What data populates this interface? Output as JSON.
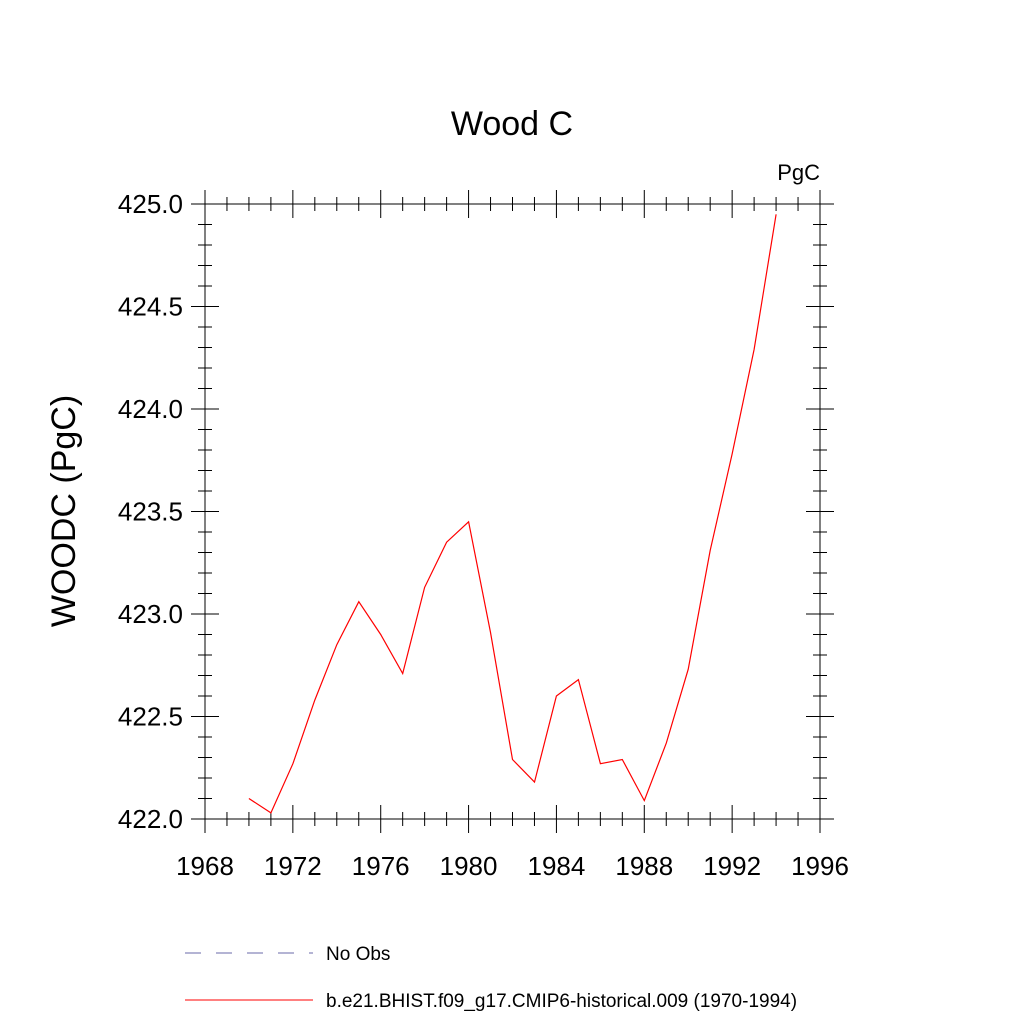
{
  "chart_data": {
    "type": "line",
    "title": "Wood C",
    "units_label": "PgC",
    "xlabel": "",
    "ylabel": "WOODC  (PgC)",
    "xlim": [
      1968,
      1996
    ],
    "ylim": [
      422.0,
      425.0
    ],
    "x_ticks": [
      1968,
      1972,
      1976,
      1980,
      1984,
      1988,
      1992,
      1996
    ],
    "x_tick_labels": [
      "1968",
      "1972",
      "1976",
      "1980",
      "1984",
      "1988",
      "1992",
      "1996"
    ],
    "y_ticks": [
      422.0,
      422.5,
      423.0,
      423.5,
      424.0,
      424.5,
      425.0
    ],
    "y_tick_labels": [
      "422.0",
      "422.5",
      "423.0",
      "423.5",
      "424.0",
      "424.5",
      "425.0"
    ],
    "grid": false,
    "legend_position": "bottom",
    "x": [
      1970,
      1971,
      1972,
      1973,
      1974,
      1975,
      1976,
      1977,
      1978,
      1979,
      1980,
      1981,
      1982,
      1983,
      1984,
      1985,
      1986,
      1987,
      1988,
      1989,
      1990,
      1991,
      1992,
      1993,
      1994
    ],
    "series": [
      {
        "name": "b.e21.BHIST.f09_g17.CMIP6-historical.009 (1970-1994)",
        "color": "#ff0000",
        "style": "solid",
        "values": [
          422.1,
          422.03,
          422.27,
          422.58,
          422.85,
          423.06,
          422.9,
          422.71,
          423.13,
          423.35,
          423.45,
          422.91,
          422.29,
          422.18,
          422.6,
          422.68,
          422.27,
          422.29,
          422.09,
          422.37,
          422.73,
          423.31,
          423.78,
          424.29,
          424.95
        ]
      }
    ],
    "legend": [
      {
        "label": "No Obs",
        "color": "#6a6aa8",
        "style": "dashed"
      },
      {
        "label": "b.e21.BHIST.f09_g17.CMIP6-historical.009 (1970-1994)",
        "color": "#ff0000",
        "style": "solid"
      }
    ]
  }
}
